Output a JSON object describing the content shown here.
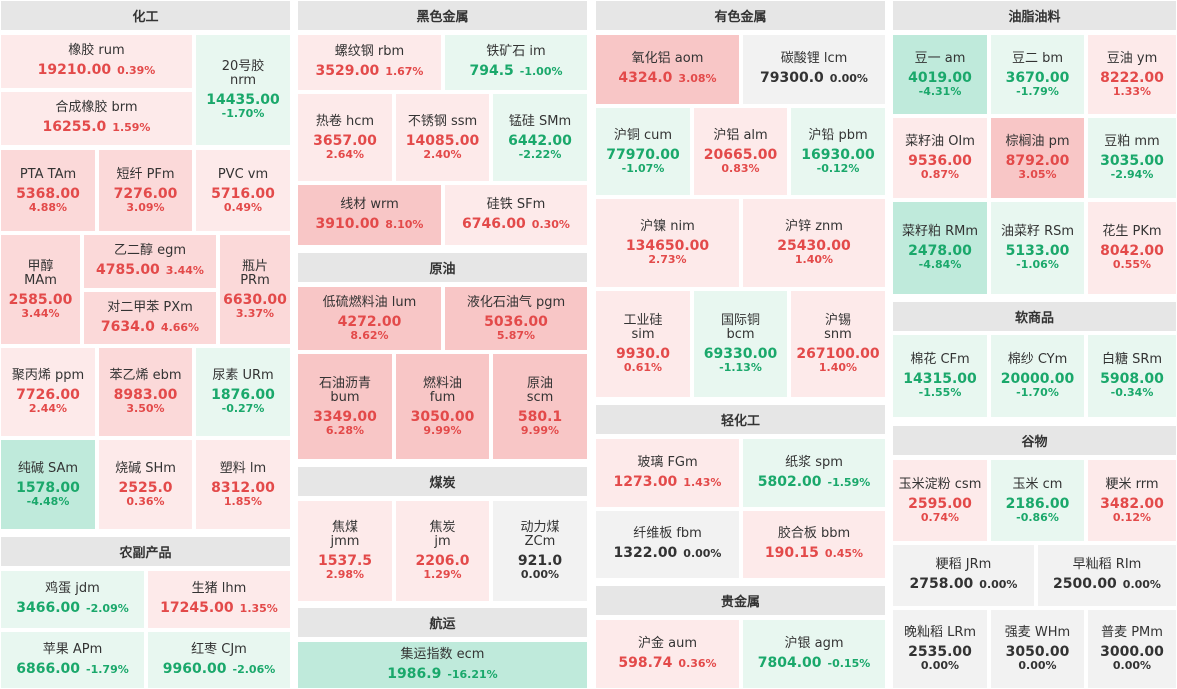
{
  "sections": [
    {
      "id": "chemicals",
      "title": "化工"
    },
    {
      "id": "ferrous",
      "title": "黑色金属"
    },
    {
      "id": "nonferrous",
      "title": "有色金属"
    },
    {
      "id": "oils",
      "title": "油脂油料"
    },
    {
      "id": "crude",
      "title": "原油"
    },
    {
      "id": "coal",
      "title": "煤炭"
    },
    {
      "id": "light",
      "title": "轻化工"
    },
    {
      "id": "precious",
      "title": "贵金属"
    },
    {
      "id": "soft",
      "title": "软商品"
    },
    {
      "id": "grains",
      "title": "谷物"
    },
    {
      "id": "agri",
      "title": "农副产品"
    },
    {
      "id": "shipping",
      "title": "航运"
    }
  ],
  "tiles": [
    {
      "id": "rum",
      "name": "橡胶  rum",
      "price": "19210.00",
      "change": "0.39%",
      "dir": "up"
    },
    {
      "id": "nrm",
      "name": "20号胶\nnrm",
      "price": "14435.00",
      "change": "-1.70%",
      "dir": "down"
    },
    {
      "id": "brm",
      "name": "合成橡胶  brm",
      "price": "16255.0",
      "change": "1.59%",
      "dir": "up"
    },
    {
      "id": "tam",
      "name": "PTA  TAm",
      "price": "5368.00",
      "change": "4.88%",
      "dir": "up"
    },
    {
      "id": "pfm",
      "name": "短纤  PFm",
      "price": "7276.00",
      "change": "3.09%",
      "dir": "up"
    },
    {
      "id": "vm",
      "name": "PVC  vm",
      "price": "5716.00",
      "change": "0.49%",
      "dir": "up"
    },
    {
      "id": "mam",
      "name": "甲醇\nMAm",
      "price": "2585.00",
      "change": "3.44%",
      "dir": "up"
    },
    {
      "id": "egm",
      "name": "乙二醇  egm",
      "price": "4785.00",
      "change": "3.44%",
      "dir": "up"
    },
    {
      "id": "prm",
      "name": "瓶片\nPRm",
      "price": "6630.00",
      "change": "3.37%",
      "dir": "up"
    },
    {
      "id": "pxm",
      "name": "对二甲苯  PXm",
      "price": "7634.0",
      "change": "4.66%",
      "dir": "up"
    },
    {
      "id": "ppm",
      "name": "聚丙烯  ppm",
      "price": "7726.00",
      "change": "2.44%",
      "dir": "up"
    },
    {
      "id": "ebm",
      "name": "苯乙烯  ebm",
      "price": "8983.00",
      "change": "3.50%",
      "dir": "up"
    },
    {
      "id": "urm",
      "name": "尿素  URm",
      "price": "1876.00",
      "change": "-0.27%",
      "dir": "down"
    },
    {
      "id": "sam",
      "name": "纯碱  SAm",
      "price": "1578.00",
      "change": "-4.48%",
      "dir": "down"
    },
    {
      "id": "shm",
      "name": "烧碱  SHm",
      "price": "2525.0",
      "change": "0.36%",
      "dir": "up"
    },
    {
      "id": "lm",
      "name": "塑料  lm",
      "price": "8312.00",
      "change": "1.85%",
      "dir": "up"
    },
    {
      "id": "jdm",
      "name": "鸡蛋  jdm",
      "price": "3466.00",
      "change": "-2.09%",
      "dir": "down"
    },
    {
      "id": "lhm",
      "name": "生猪  lhm",
      "price": "17245.00",
      "change": "1.35%",
      "dir": "up"
    },
    {
      "id": "apm",
      "name": "苹果  APm",
      "price": "6866.00",
      "change": "-1.79%",
      "dir": "down"
    },
    {
      "id": "cjm",
      "name": "红枣  CJm",
      "price": "9960.00",
      "change": "-2.06%",
      "dir": "down"
    },
    {
      "id": "rbm",
      "name": "螺纹钢  rbm",
      "price": "3529.00",
      "change": "1.67%",
      "dir": "up"
    },
    {
      "id": "im",
      "name": "铁矿石  im",
      "price": "794.5",
      "change": "-1.00%",
      "dir": "down"
    },
    {
      "id": "hcm",
      "name": "热卷  hcm",
      "price": "3657.00",
      "change": "2.64%",
      "dir": "up"
    },
    {
      "id": "ssm",
      "name": "不锈钢  ssm",
      "price": "14085.00",
      "change": "2.40%",
      "dir": "up"
    },
    {
      "id": "smm",
      "name": "锰硅  SMm",
      "price": "6442.00",
      "change": "-2.22%",
      "dir": "down"
    },
    {
      "id": "wrm",
      "name": "线材  wrm",
      "price": "3910.00",
      "change": "8.10%",
      "dir": "up"
    },
    {
      "id": "sfm",
      "name": "硅铁  SFm",
      "price": "6746.00",
      "change": "0.30%",
      "dir": "up"
    },
    {
      "id": "lum",
      "name": "低硫燃料油  lum",
      "price": "4272.00",
      "change": "8.62%",
      "dir": "up"
    },
    {
      "id": "pgm",
      "name": "液化石油气  pgm",
      "price": "5036.00",
      "change": "5.87%",
      "dir": "up"
    },
    {
      "id": "bum",
      "name": "石油沥青\nbum",
      "price": "3349.00",
      "change": "6.28%",
      "dir": "up"
    },
    {
      "id": "fum",
      "name": "燃料油\nfum",
      "price": "3050.00",
      "change": "9.99%",
      "dir": "up"
    },
    {
      "id": "scm",
      "name": "原油\nscm",
      "price": "580.1",
      "change": "9.99%",
      "dir": "up"
    },
    {
      "id": "jmm",
      "name": "焦煤\njmm",
      "price": "1537.5",
      "change": "2.98%",
      "dir": "up"
    },
    {
      "id": "jm",
      "name": "焦炭\njm",
      "price": "2206.0",
      "change": "1.29%",
      "dir": "up"
    },
    {
      "id": "zcm",
      "name": "动力煤\nZCm",
      "price": "921.0",
      "change": "0.00%",
      "dir": "flat"
    },
    {
      "id": "ecm",
      "name": "集运指数  ecm",
      "price": "1986.9",
      "change": "-16.21%",
      "dir": "down"
    },
    {
      "id": "aom",
      "name": "氧化铝  aom",
      "price": "4324.0",
      "change": "3.08%",
      "dir": "up"
    },
    {
      "id": "lcm",
      "name": "碳酸锂  lcm",
      "price": "79300.0",
      "change": "0.00%",
      "dir": "flat"
    },
    {
      "id": "cum",
      "name": "沪铜  cum",
      "price": "77970.00",
      "change": "-1.07%",
      "dir": "down"
    },
    {
      "id": "alm",
      "name": "沪铝  alm",
      "price": "20665.00",
      "change": "0.83%",
      "dir": "up"
    },
    {
      "id": "pbm",
      "name": "沪铅  pbm",
      "price": "16930.00",
      "change": "-0.12%",
      "dir": "down"
    },
    {
      "id": "nim",
      "name": "沪镍  nim",
      "price": "134650.00",
      "change": "2.73%",
      "dir": "up"
    },
    {
      "id": "znm",
      "name": "沪锌  znm",
      "price": "25430.00",
      "change": "1.40%",
      "dir": "up"
    },
    {
      "id": "sim",
      "name": "工业硅\nsim",
      "price": "9930.0",
      "change": "0.61%",
      "dir": "up"
    },
    {
      "id": "bcm",
      "name": "国际铜\nbcm",
      "price": "69330.00",
      "change": "-1.13%",
      "dir": "down"
    },
    {
      "id": "snm",
      "name": "沪锡\nsnm",
      "price": "267100.00",
      "change": "1.40%",
      "dir": "up"
    },
    {
      "id": "fgm",
      "name": "玻璃  FGm",
      "price": "1273.00",
      "change": "1.43%",
      "dir": "up"
    },
    {
      "id": "spm",
      "name": "纸浆  spm",
      "price": "5802.00",
      "change": "-1.59%",
      "dir": "down"
    },
    {
      "id": "fbm",
      "name": "纤维板  fbm",
      "price": "1322.00",
      "change": "0.00%",
      "dir": "flat"
    },
    {
      "id": "bbm",
      "name": "胶合板  bbm",
      "price": "190.15",
      "change": "0.45%",
      "dir": "up"
    },
    {
      "id": "aum",
      "name": "沪金  aum",
      "price": "598.74",
      "change": "0.36%",
      "dir": "up"
    },
    {
      "id": "agm",
      "name": "沪银  agm",
      "price": "7804.00",
      "change": "-0.15%",
      "dir": "down"
    },
    {
      "id": "am",
      "name": "豆一  am",
      "price": "4019.00",
      "change": "-4.31%",
      "dir": "down"
    },
    {
      "id": "bm",
      "name": "豆二  bm",
      "price": "3670.00",
      "change": "-1.79%",
      "dir": "down"
    },
    {
      "id": "ym",
      "name": "豆油  ym",
      "price": "8222.00",
      "change": "1.33%",
      "dir": "up"
    },
    {
      "id": "oim",
      "name": "菜籽油  OIm",
      "price": "9536.00",
      "change": "0.87%",
      "dir": "up"
    },
    {
      "id": "pm",
      "name": "棕榈油  pm",
      "price": "8792.00",
      "change": "3.05%",
      "dir": "up"
    },
    {
      "id": "mm",
      "name": "豆粕  mm",
      "price": "3035.00",
      "change": "-2.94%",
      "dir": "down"
    },
    {
      "id": "rmm",
      "name": "菜籽粕  RMm",
      "price": "2478.00",
      "change": "-4.84%",
      "dir": "down"
    },
    {
      "id": "rsm",
      "name": "油菜籽  RSm",
      "price": "5133.00",
      "change": "-1.06%",
      "dir": "down"
    },
    {
      "id": "pkm",
      "name": "花生  PKm",
      "price": "8042.00",
      "change": "0.55%",
      "dir": "up"
    },
    {
      "id": "cfm",
      "name": "棉花  CFm",
      "price": "14315.00",
      "change": "-1.55%",
      "dir": "down"
    },
    {
      "id": "cym",
      "name": "棉纱  CYm",
      "price": "20000.00",
      "change": "-1.70%",
      "dir": "down"
    },
    {
      "id": "srm",
      "name": "白糖  SRm",
      "price": "5908.00",
      "change": "-0.34%",
      "dir": "down"
    },
    {
      "id": "csm",
      "name": "玉米淀粉  csm",
      "price": "2595.00",
      "change": "0.74%",
      "dir": "up"
    },
    {
      "id": "cm",
      "name": "玉米  cm",
      "price": "2186.00",
      "change": "-0.86%",
      "dir": "down"
    },
    {
      "id": "rrm",
      "name": "粳米  rrm",
      "price": "3482.00",
      "change": "0.12%",
      "dir": "up"
    },
    {
      "id": "jrm",
      "name": "粳稻  JRm",
      "price": "2758.00",
      "change": "0.00%",
      "dir": "flat"
    },
    {
      "id": "rim",
      "name": "早籼稻  RIm",
      "price": "2500.00",
      "change": "0.00%",
      "dir": "flat"
    },
    {
      "id": "lrm",
      "name": "晚籼稻  LRm",
      "price": "2535.00",
      "change": "0.00%",
      "dir": "flat"
    },
    {
      "id": "whm",
      "name": "强麦  WHm",
      "price": "3050.00",
      "change": "0.00%",
      "dir": "flat"
    },
    {
      "id": "pmm",
      "name": "普麦  PMm",
      "price": "3000.00",
      "change": "0.00%",
      "dir": "flat"
    }
  ]
}
